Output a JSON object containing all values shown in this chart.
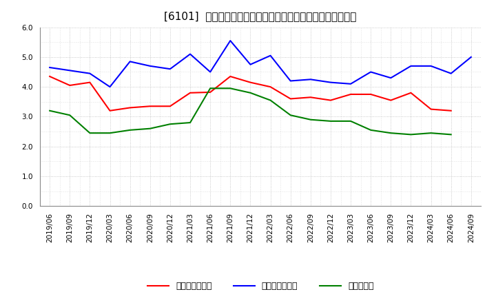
{
  "title": "[6101]  売上債権回転率、買入債務回転率、在庫回転率の推移",
  "x_labels": [
    "2019/06",
    "2019/09",
    "2019/12",
    "2020/03",
    "2020/06",
    "2020/09",
    "2020/12",
    "2021/03",
    "2021/06",
    "2021/09",
    "2021/12",
    "2022/03",
    "2022/06",
    "2022/09",
    "2022/12",
    "2023/03",
    "2023/06",
    "2023/09",
    "2023/12",
    "2024/03",
    "2024/06",
    "2024/09"
  ],
  "series": [
    {
      "name": "売上債権回転率",
      "color": "#ff0000",
      "values": [
        4.35,
        4.05,
        4.15,
        3.2,
        3.3,
        3.35,
        3.35,
        3.8,
        3.82,
        4.35,
        4.15,
        4.0,
        3.6,
        3.65,
        3.55,
        3.75,
        3.75,
        3.55,
        3.8,
        3.25,
        3.2,
        null
      ]
    },
    {
      "name": "買入債務回転率",
      "color": "#0000ff",
      "values": [
        4.65,
        4.55,
        4.45,
        4.0,
        4.85,
        4.7,
        4.6,
        5.1,
        4.5,
        5.55,
        4.75,
        5.05,
        4.2,
        4.25,
        4.15,
        4.1,
        4.5,
        4.3,
        4.7,
        4.7,
        4.45,
        5.0
      ]
    },
    {
      "name": "在庫回転率",
      "color": "#008000",
      "values": [
        3.2,
        3.05,
        2.45,
        2.45,
        2.55,
        2.6,
        2.75,
        2.8,
        3.95,
        3.95,
        3.8,
        3.55,
        3.05,
        2.9,
        2.85,
        2.85,
        2.55,
        2.45,
        2.4,
        2.45,
        2.4,
        null
      ]
    }
  ],
  "ylim": [
    0.0,
    6.0
  ],
  "yticks": [
    0.0,
    1.0,
    2.0,
    3.0,
    4.0,
    5.0,
    6.0
  ],
  "background_color": "#ffffff",
  "grid_color": "#aaaaaa",
  "title_fontsize": 11,
  "tick_fontsize": 7.5,
  "legend_fontsize": 9
}
